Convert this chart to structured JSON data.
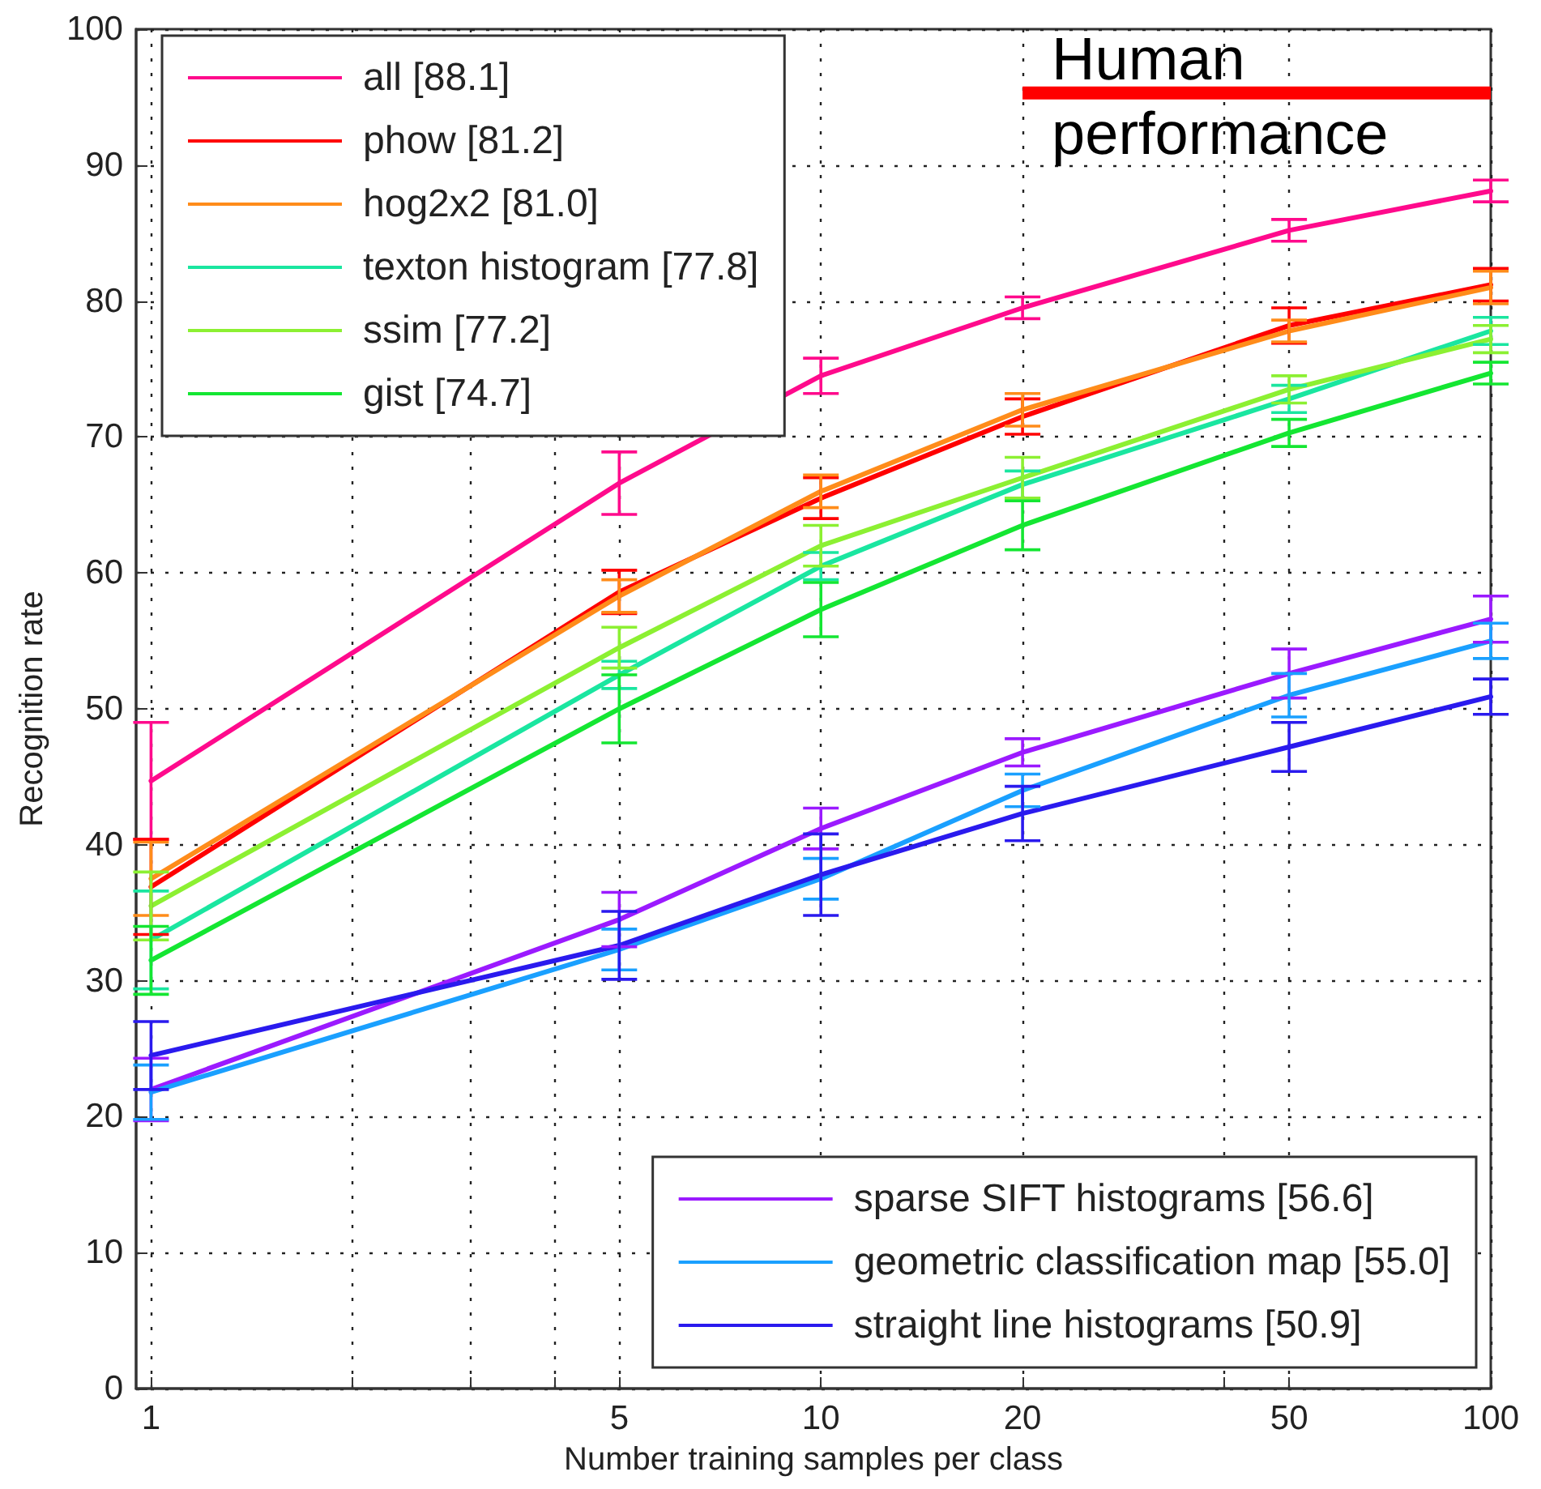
{
  "chart_data": {
    "type": "line",
    "xlabel": "Number training samples per class",
    "ylabel": "Recognition rate",
    "log": "x",
    "xlim": [
      0.95,
      100
    ],
    "xticks": [
      1,
      {
        "value": 2,
        "label": null
      },
      {
        "value": 3,
        "label": null
      },
      {
        "value": 4,
        "label": null
      },
      5,
      10,
      20,
      {
        "value": 40,
        "label": null
      },
      50,
      100
    ],
    "ylim": [
      0,
      100
    ],
    "yticks": [
      0,
      10,
      20,
      30,
      40,
      50,
      60,
      70,
      80,
      90,
      100
    ],
    "grid": true,
    "legend": "top left",
    "line_style": "solid",
    "marker": "none",
    "x": [
      1,
      5,
      10,
      20,
      50,
      100
    ],
    "series": [
      {
        "name": "all [88.1]",
        "color": "#ff0a8c",
        "values": [
          44.7,
          66.6,
          74.5,
          79.5,
          85.2,
          88.1
        ],
        "errors": [
          4.3,
          2.3,
          1.3,
          0.8,
          0.8,
          0.8
        ]
      },
      {
        "name": "phow [81.2]",
        "color": "#ff0000",
        "values": [
          36.9,
          58.6,
          65.5,
          71.5,
          78.2,
          81.2
        ],
        "errors": [
          3.5,
          1.6,
          1.5,
          1.3,
          1.3,
          1.2
        ]
      },
      {
        "name": "hog2x2 [81.0]",
        "color": "#ff8c1a",
        "values": [
          37.5,
          58.3,
          66.0,
          72.0,
          77.8,
          81.0
        ],
        "errors": [
          2.7,
          1.2,
          1.2,
          1.2,
          0.8,
          1.2
        ]
      },
      {
        "name": "texton histogram [77.8]",
        "color": "#1ae6a0",
        "values": [
          33.0,
          52.5,
          60.5,
          66.5,
          72.8,
          77.8
        ],
        "errors": [
          3.6,
          1.0,
          1.0,
          1.0,
          1.0,
          1.0
        ]
      },
      {
        "name": "ssim [77.2]",
        "color": "#8cf032",
        "values": [
          35.5,
          54.5,
          62.0,
          67.0,
          73.5,
          77.2
        ],
        "errors": [
          2.5,
          1.5,
          1.5,
          1.5,
          1.0,
          1.0
        ]
      },
      {
        "name": "gist [74.7]",
        "color": "#14e632",
        "values": [
          31.5,
          50.0,
          57.3,
          63.5,
          70.3,
          74.7
        ],
        "errors": [
          2.5,
          2.5,
          2.0,
          1.8,
          1.0,
          0.8
        ]
      },
      {
        "name": "sparse SIFT histograms [56.6]",
        "color": "#9b1aff",
        "values": [
          22.0,
          34.5,
          41.2,
          46.8,
          52.6,
          56.6
        ],
        "errors": [
          2.3,
          2.0,
          1.5,
          1.0,
          1.8,
          1.7
        ]
      },
      {
        "name": "geometric classification map [55.0]",
        "color": "#1aa0ff",
        "values": [
          21.8,
          32.3,
          37.5,
          44.0,
          51.0,
          55.0
        ],
        "errors": [
          2.0,
          1.5,
          1.5,
          1.2,
          1.6,
          1.3
        ]
      },
      {
        "name": "straight line histograms [50.9]",
        "color": "#2a1aee",
        "values": [
          24.5,
          32.6,
          37.8,
          42.3,
          47.2,
          50.9
        ],
        "errors": [
          2.5,
          2.5,
          3.0,
          2.0,
          1.8,
          1.3
        ]
      },
      {
        "name": "Human performance",
        "color": "#ff0000",
        "x": [
          20,
          100
        ],
        "values": [
          95.3,
          95.3
        ]
      }
    ]
  }
}
